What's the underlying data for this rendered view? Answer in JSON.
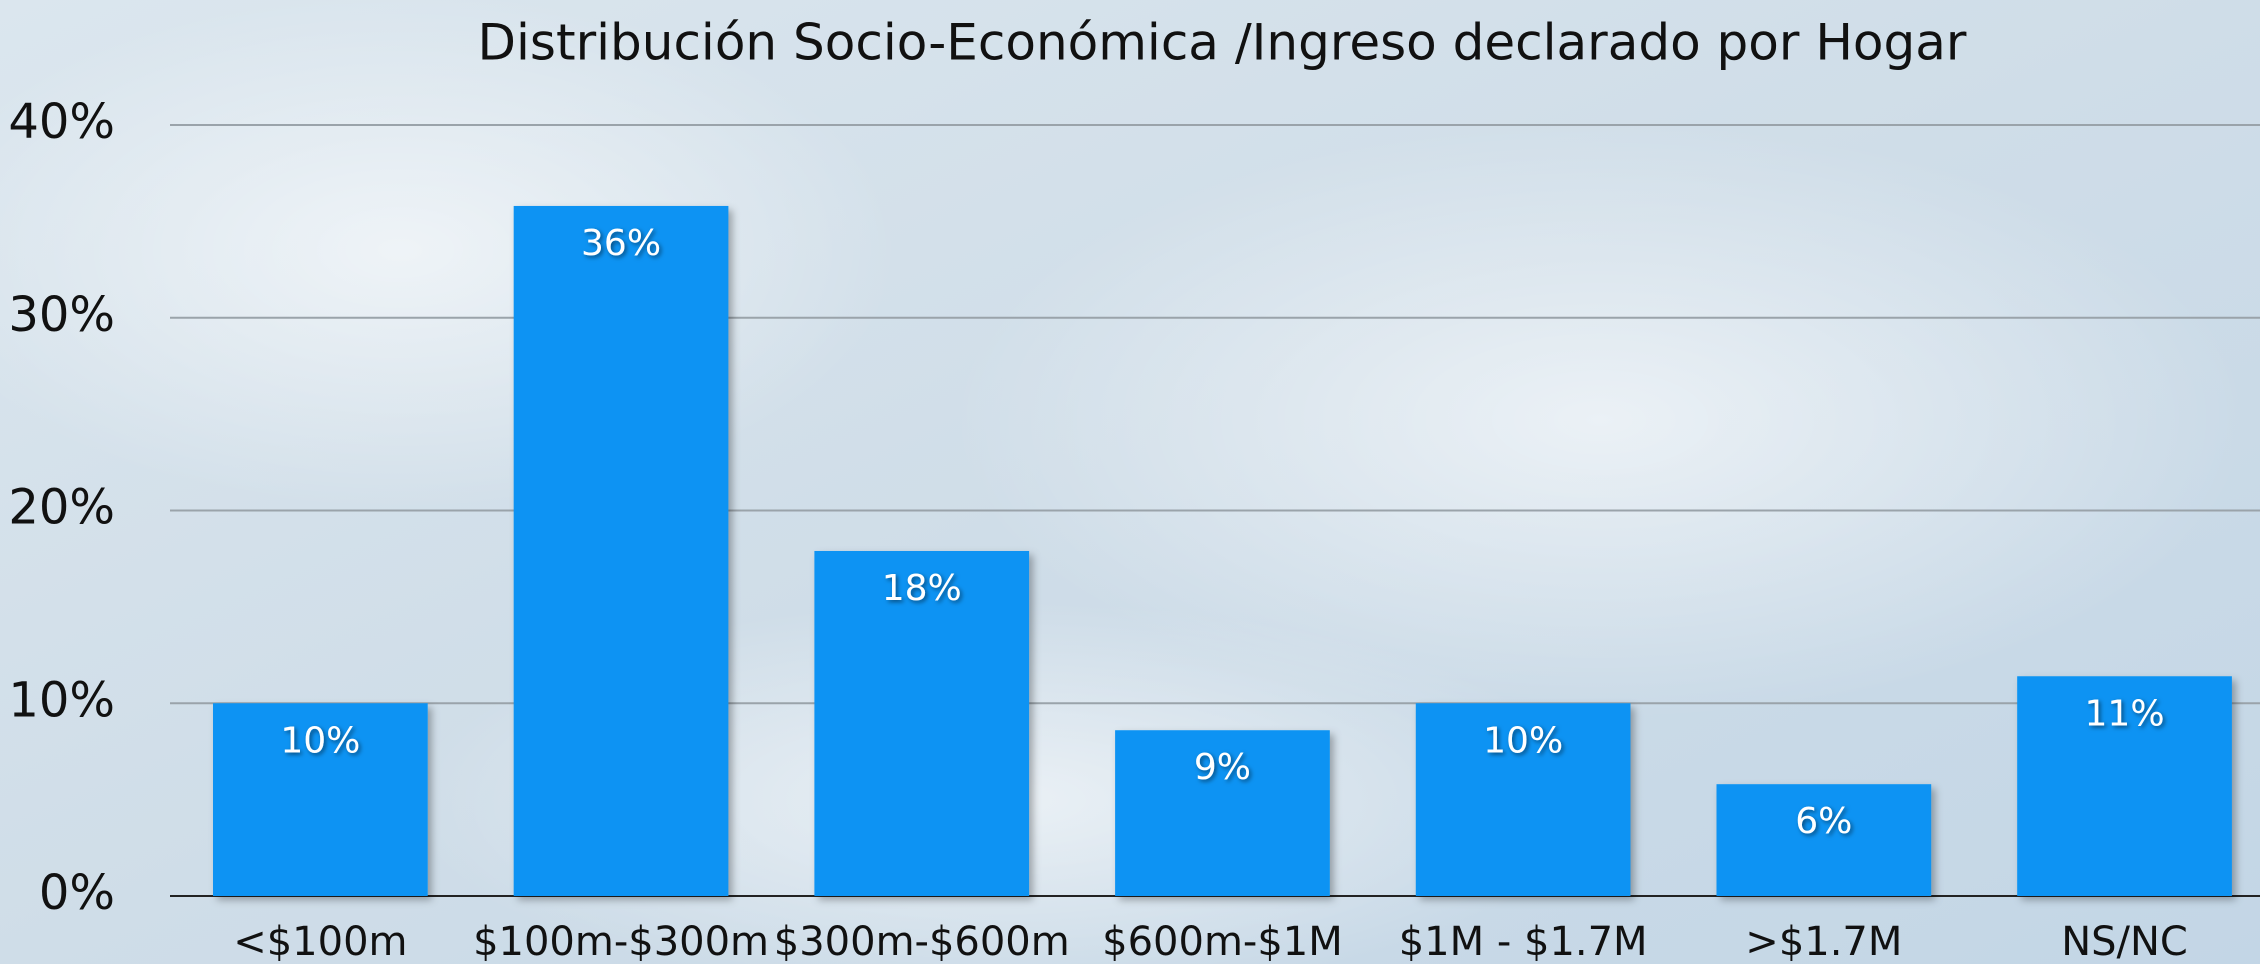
{
  "chart_data": {
    "type": "bar",
    "title": "Distribución Socio-Económica /Ingreso declarado por Hogar",
    "categories": [
      "<$100m",
      "$100m-$300m",
      "$300m-$600m",
      "$600m-$1M",
      "$1M - $1.7M",
      ">$1.7M",
      "NS/NC"
    ],
    "values": [
      10,
      35.8,
      17.9,
      8.6,
      10,
      5.8,
      11.4
    ],
    "value_labels": [
      "10%",
      "36%",
      "18%",
      "9%",
      "10%",
      "6%",
      "11%"
    ],
    "color": "#0b93f3",
    "ylim": [
      0,
      40
    ],
    "yticks": [
      {
        "value": 0,
        "label": "0%"
      },
      {
        "value": 10,
        "label": "10%"
      },
      {
        "value": 20,
        "label": "20%"
      },
      {
        "value": 30,
        "label": "30%"
      },
      {
        "value": 40,
        "label": "40%"
      }
    ],
    "grid": true
  }
}
